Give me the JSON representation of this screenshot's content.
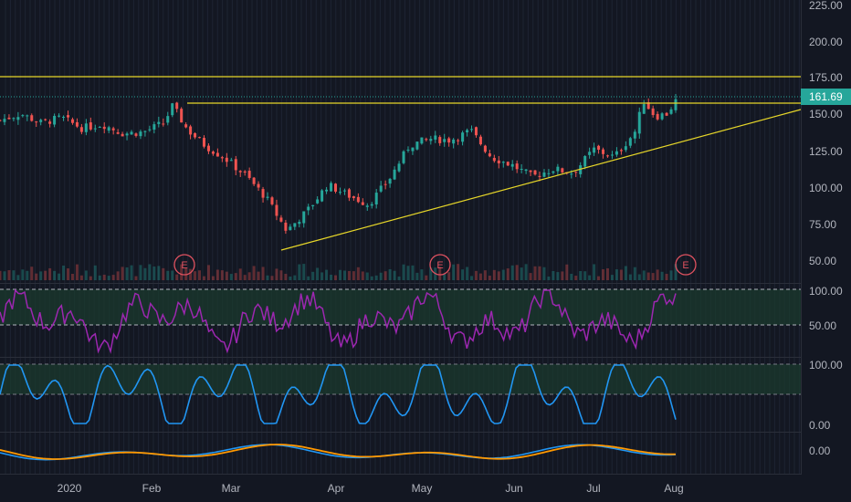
{
  "colors": {
    "background": "#131722",
    "grid": "#1e2433",
    "up": "#26a69a",
    "down": "#ef5350",
    "trendline": "#e6d629",
    "rsi": "#9c27b0",
    "stoch": "#2196f3",
    "macd": "#2196f3",
    "signal": "#ff9800",
    "price_badge": "#26a69a",
    "earnings": "#e05260",
    "band_fill": "#1b3a2e"
  },
  "price_panel": {
    "axis_ticks": [
      "225.00",
      "200.00",
      "175.00",
      "150.00",
      "125.00",
      "100.00",
      "75.00",
      "50.00"
    ],
    "last_price": "161.69",
    "earnings_label": "E"
  },
  "rsi_panel": {
    "axis_ticks": [
      "100.00",
      "50.00"
    ]
  },
  "stoch_panel": {
    "axis_ticks": [
      "100.00",
      "0.00"
    ]
  },
  "macd_panel": {
    "axis_ticks": [
      "0.00"
    ]
  },
  "time_axis": {
    "labels": [
      "2020",
      "Feb",
      "Mar",
      "Apr",
      "May",
      "Jun",
      "Jul",
      "Aug"
    ]
  },
  "chart_data": {
    "type": "candlestick",
    "x_range": [
      "2019-12-16",
      "2020-08-03"
    ],
    "ylim": [
      40,
      235
    ],
    "price_trend": [
      [
        "2019-12-16",
        147
      ],
      [
        "2019-12-23",
        152
      ],
      [
        "2019-12-30",
        145
      ],
      [
        "2020-01-06",
        149
      ],
      [
        "2020-01-13",
        141
      ],
      [
        "2020-01-20",
        144
      ],
      [
        "2020-01-27",
        137
      ],
      [
        "2020-02-03",
        138
      ],
      [
        "2020-02-10",
        145
      ],
      [
        "2020-02-13",
        158
      ],
      [
        "2020-02-18",
        140
      ],
      [
        "2020-02-24",
        128
      ],
      [
        "2020-03-02",
        118
      ],
      [
        "2020-03-09",
        105
      ],
      [
        "2020-03-16",
        88
      ],
      [
        "2020-03-23",
        63
      ],
      [
        "2020-03-30",
        78
      ],
      [
        "2020-04-06",
        98
      ],
      [
        "2020-04-13",
        90
      ],
      [
        "2020-04-20",
        83
      ],
      [
        "2020-04-27",
        102
      ],
      [
        "2020-05-04",
        128
      ],
      [
        "2020-05-11",
        133
      ],
      [
        "2020-05-18",
        132
      ],
      [
        "2020-05-25",
        139
      ],
      [
        "2020-06-01",
        119
      ],
      [
        "2020-06-08",
        113
      ],
      [
        "2020-06-15",
        104
      ],
      [
        "2020-06-22",
        110
      ],
      [
        "2020-06-29",
        107
      ],
      [
        "2020-07-06",
        125
      ],
      [
        "2020-07-13",
        119
      ],
      [
        "2020-07-20",
        138
      ],
      [
        "2020-07-23",
        162
      ],
      [
        "2020-07-27",
        150
      ],
      [
        "2020-07-31",
        152
      ],
      [
        "2020-08-03",
        161.69
      ]
    ],
    "horizontal_levels": [
      175,
      158
    ],
    "trendlines": [
      {
        "from": [
          "2020-03-20",
          57
        ],
        "to": [
          "2020-08-31",
          151
        ]
      }
    ],
    "earnings_dates": [
      "2020-02-11",
      "2020-05-05",
      "2020-08-03"
    ],
    "rsi": {
      "upper": 100,
      "mid": 50
    },
    "stoch": {
      "upper": 100,
      "lower": 0
    }
  }
}
